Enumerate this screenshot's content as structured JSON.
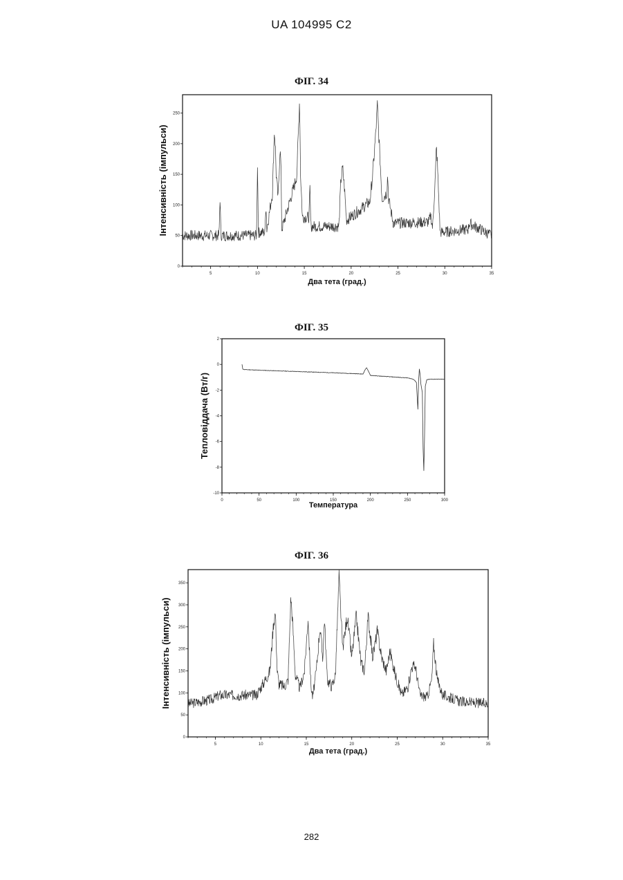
{
  "page": {
    "header": "UA   104995   C2",
    "page_number": "282"
  },
  "chart_data": [
    {
      "type": "line",
      "title": "ФІГ. 34",
      "xlabel": "Два тета (град.)",
      "ylabel": "Інтенсивність (імпульси)",
      "xlim": [
        2,
        35
      ],
      "ylim": [
        0,
        280
      ],
      "xticks": [
        5,
        10,
        15,
        20,
        25,
        30,
        35
      ],
      "xtick_labels": [
        "5",
        "10",
        "15",
        "20",
        "25",
        "30",
        "35"
      ],
      "yticks": [
        0,
        50,
        100,
        150,
        200,
        250
      ],
      "ytick_labels": [
        "0",
        "50",
        "100",
        "150",
        "200",
        "250"
      ],
      "baseline": 50,
      "series": [
        {
          "x": [
            2,
            5.9,
            6.0,
            6.1,
            9.9,
            10.0,
            10.1,
            10.8,
            10.9,
            11.0,
            11.6,
            11.8,
            11.9,
            12.0,
            12.2,
            12.4,
            12.5,
            12.6,
            14.0,
            14.2,
            14.4,
            14.5,
            14.6,
            14.8,
            15.5,
            15.6,
            15.7,
            18.7,
            18.9,
            19.1,
            19.3,
            19.5,
            22.0,
            22.3,
            22.6,
            22.8,
            23.0,
            23.3,
            23.8,
            23.9,
            24.0,
            24.5,
            28.3,
            28.5,
            28.7,
            29.0,
            29.1,
            29.2,
            29.5,
            32.5,
            32.6,
            35
          ],
          "y": [
            50,
            50,
            112,
            50,
            50,
            168,
            55,
            55,
            105,
            60,
            120,
            220,
            200,
            150,
            110,
            190,
            170,
            60,
            135,
            150,
            232,
            275,
            150,
            80,
            80,
            125,
            65,
            65,
            140,
            160,
            125,
            75,
            105,
            150,
            210,
            262,
            200,
            110,
            120,
            150,
            110,
            70,
            72,
            83,
            62,
            150,
            195,
            170,
            55,
            60,
            70,
            50
          ]
        }
      ]
    },
    {
      "type": "line",
      "title": "ФІГ. 35",
      "xlabel": "Температура",
      "ylabel": "Тепловіддача (Вт/г)",
      "xlim": [
        0,
        300
      ],
      "ylim": [
        -10,
        2
      ],
      "xticks": [
        0,
        50,
        100,
        150,
        200,
        250,
        300
      ],
      "xtick_labels": [
        "0",
        "50",
        "100",
        "150",
        "200",
        "250",
        "300"
      ],
      "yticks": [
        2,
        0,
        -2,
        -4,
        -6,
        -8,
        -10
      ],
      "ytick_labels": [
        "2",
        "0",
        "-2",
        "-4",
        "-6",
        "-8",
        "-10"
      ],
      "series": [
        {
          "x": [
            27,
            28,
            30,
            50,
            100,
            150,
            180,
            190,
            193,
            195,
            197,
            200,
            210,
            250,
            258,
            262,
            264,
            265,
            266,
            267,
            268,
            270,
            271,
            272,
            273,
            274,
            276,
            280,
            300
          ],
          "y": [
            0,
            -0.35,
            -0.4,
            -0.45,
            -0.55,
            -0.65,
            -0.72,
            -0.75,
            -0.4,
            -0.25,
            -0.5,
            -0.85,
            -0.9,
            -1.05,
            -1.15,
            -1.4,
            -3.5,
            -1.2,
            -0.35,
            -0.8,
            -1.5,
            -2.2,
            -6.5,
            -8.3,
            -5.5,
            -1.7,
            -1.2,
            -1.15,
            -1.15
          ]
        }
      ]
    },
    {
      "type": "line",
      "title": "ФІГ. 36",
      "xlabel": "Два тета (град.)",
      "ylabel": "Інтенсивність (імпульси)",
      "xlim": [
        2,
        35
      ],
      "ylim": [
        0,
        380
      ],
      "xticks": [
        5,
        10,
        15,
        20,
        25,
        30,
        35
      ],
      "xtick_labels": [
        "5",
        "10",
        "15",
        "20",
        "25",
        "30",
        "35"
      ],
      "yticks": [
        0,
        50,
        100,
        150,
        200,
        250,
        300,
        350
      ],
      "ytick_labels": [
        "0",
        "50",
        "100",
        "150",
        "200",
        "250",
        "300",
        "350"
      ],
      "baseline": 80,
      "series": [
        {
          "x": [
            2,
            4.5,
            5.5,
            9.5,
            10.5,
            11.0,
            11.4,
            11.6,
            11.8,
            12.0,
            12.6,
            13.0,
            13.3,
            13.5,
            13.8,
            14.3,
            14.8,
            15.2,
            15.5,
            15.7,
            16.1,
            16.5,
            16.8,
            17.0,
            17.3,
            17.8,
            18.2,
            18.6,
            19.0,
            19.5,
            20.0,
            20.5,
            21.0,
            21.4,
            21.8,
            22.3,
            22.8,
            23.3,
            23.8,
            24.2,
            24.8,
            25.5,
            26.2,
            26.6,
            27.0,
            27.5,
            28.3,
            28.8,
            29.0,
            29.4,
            30.0,
            32.0,
            35
          ],
          "y": [
            75,
            85,
            95,
            95,
            130,
            150,
            260,
            282,
            150,
            120,
            115,
            130,
            320,
            260,
            140,
            110,
            150,
            270,
            120,
            90,
            150,
            250,
            180,
            270,
            130,
            115,
            140,
            365,
            200,
            275,
            180,
            275,
            170,
            150,
            275,
            180,
            240,
            180,
            150,
            195,
            140,
            95,
            115,
            160,
            160,
            95,
            90,
            130,
            212,
            130,
            95,
            80,
            75
          ]
        }
      ]
    }
  ]
}
